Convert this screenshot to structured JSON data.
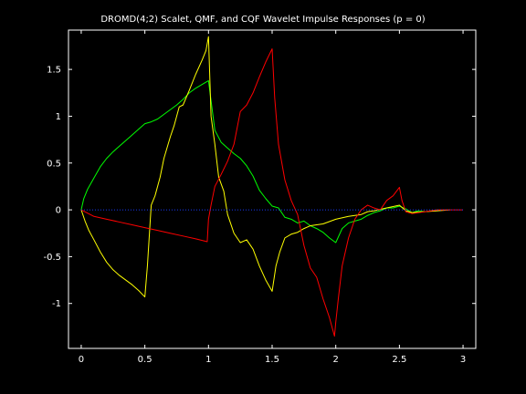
{
  "chart_data": {
    "type": "line",
    "title": "DROMD(4;2) Scalet, QMF, and CQF Wavelet Impulse Responses (p = 0)",
    "xlabel": "",
    "ylabel": "",
    "xlim": [
      -0.1,
      3.1
    ],
    "ylim": [
      -1.48,
      1.92
    ],
    "x_ticks": [
      0,
      0.5,
      1,
      1.5,
      2,
      2.5,
      3
    ],
    "x_tick_labels": [
      "0",
      "0.5",
      "1",
      "1.5",
      "2",
      "2.5",
      "3"
    ],
    "y_ticks": [
      -1,
      -0.5,
      0,
      0.5,
      1,
      1.5
    ],
    "y_tick_labels": [
      "-1",
      "-0.5",
      "0",
      "0.5",
      "1",
      "1.5"
    ],
    "grid": false,
    "background": "#000000",
    "axis_color": "#ffffff",
    "series": [
      {
        "color": "#00ff00",
        "x": [
          0,
          0.02,
          0.05,
          0.1,
          0.15,
          0.2,
          0.25,
          0.3,
          0.35,
          0.4,
          0.45,
          0.5,
          0.55,
          0.6,
          0.65,
          0.7,
          0.75,
          0.8,
          0.85,
          0.9,
          0.95,
          1.0,
          1.05,
          1.1,
          1.15,
          1.2,
          1.25,
          1.3,
          1.35,
          1.4,
          1.45,
          1.5,
          1.55,
          1.6,
          1.65,
          1.7,
          1.75,
          1.8,
          1.85,
          1.9,
          1.95,
          2.0,
          2.05,
          2.1,
          2.15,
          2.2,
          2.25,
          2.3,
          2.35,
          2.4,
          2.45,
          2.5,
          2.55,
          2.6,
          2.65,
          2.7,
          2.75,
          2.8
        ],
        "values": [
          0,
          0.12,
          0.22,
          0.34,
          0.46,
          0.55,
          0.62,
          0.68,
          0.74,
          0.8,
          0.86,
          0.92,
          0.94,
          0.97,
          1.02,
          1.07,
          1.12,
          1.18,
          1.25,
          1.3,
          1.34,
          1.38,
          0.85,
          0.72,
          0.66,
          0.6,
          0.55,
          0.47,
          0.36,
          0.21,
          0.12,
          0.04,
          0.02,
          -0.08,
          -0.1,
          -0.14,
          -0.12,
          -0.17,
          -0.2,
          -0.24,
          -0.3,
          -0.35,
          -0.2,
          -0.14,
          -0.12,
          -0.1,
          -0.06,
          -0.03,
          -0.01,
          0.02,
          0.02,
          0.04,
          0.01,
          -0.03,
          -0.01,
          -0.02,
          -0.01,
          0
        ]
      },
      {
        "color": "#ffff00",
        "x": [
          0,
          0.03,
          0.06,
          0.1,
          0.15,
          0.2,
          0.25,
          0.3,
          0.35,
          0.4,
          0.45,
          0.5,
          0.52,
          0.55,
          0.58,
          0.62,
          0.65,
          0.7,
          0.73,
          0.77,
          0.8,
          0.85,
          0.9,
          0.95,
          0.98,
          1.0,
          1.02,
          1.05,
          1.08,
          1.12,
          1.15,
          1.2,
          1.25,
          1.3,
          1.35,
          1.4,
          1.45,
          1.5,
          1.53,
          1.56,
          1.6,
          1.65,
          1.7,
          1.75,
          1.8,
          1.9,
          2.0,
          2.1,
          2.2,
          2.25,
          2.3,
          2.4,
          2.5,
          2.55,
          2.6,
          2.7,
          2.8,
          2.9
        ],
        "values": [
          0,
          -0.12,
          -0.22,
          -0.32,
          -0.45,
          -0.56,
          -0.64,
          -0.7,
          -0.75,
          -0.8,
          -0.86,
          -0.93,
          -0.6,
          0.05,
          0.15,
          0.35,
          0.55,
          0.78,
          0.9,
          1.1,
          1.12,
          1.28,
          1.45,
          1.6,
          1.7,
          1.85,
          1.0,
          0.7,
          0.35,
          0.2,
          -0.05,
          -0.25,
          -0.35,
          -0.32,
          -0.42,
          -0.6,
          -0.75,
          -0.87,
          -0.6,
          -0.45,
          -0.3,
          -0.26,
          -0.24,
          -0.2,
          -0.17,
          -0.15,
          -0.1,
          -0.07,
          -0.05,
          -0.02,
          -0.01,
          0.02,
          0.05,
          -0.01,
          -0.03,
          -0.02,
          -0.01,
          0
        ]
      },
      {
        "color": "#ff0000",
        "x": [
          0,
          0.1,
          0.2,
          0.3,
          0.4,
          0.5,
          0.6,
          0.7,
          0.8,
          0.9,
          0.99,
          1.0,
          1.02,
          1.05,
          1.1,
          1.15,
          1.2,
          1.25,
          1.3,
          1.35,
          1.4,
          1.45,
          1.5,
          1.52,
          1.55,
          1.6,
          1.65,
          1.7,
          1.75,
          1.8,
          1.85,
          1.9,
          1.95,
          1.99,
          2.0,
          2.02,
          2.05,
          2.1,
          2.15,
          2.2,
          2.25,
          2.3,
          2.35,
          2.4,
          2.45,
          2.5,
          2.52,
          2.55,
          2.6,
          2.7,
          2.8,
          2.9,
          3.0
        ],
        "values": [
          0,
          -0.07,
          -0.1,
          -0.13,
          -0.16,
          -0.19,
          -0.22,
          -0.25,
          -0.28,
          -0.31,
          -0.34,
          -0.1,
          0.05,
          0.25,
          0.38,
          0.52,
          0.7,
          1.05,
          1.12,
          1.25,
          1.42,
          1.58,
          1.72,
          1.2,
          0.7,
          0.32,
          0.1,
          -0.05,
          -0.38,
          -0.62,
          -0.72,
          -0.95,
          -1.15,
          -1.35,
          -1.2,
          -0.95,
          -0.6,
          -0.3,
          -0.1,
          0.0,
          0.05,
          0.02,
          0.0,
          0.1,
          0.15,
          0.24,
          0.1,
          -0.02,
          -0.04,
          -0.02,
          0.0,
          0.0,
          0.0
        ]
      },
      {
        "color": "#1a3cff",
        "style": "dotted",
        "x": [
          0,
          3.0
        ],
        "values": [
          0,
          0
        ]
      }
    ]
  }
}
